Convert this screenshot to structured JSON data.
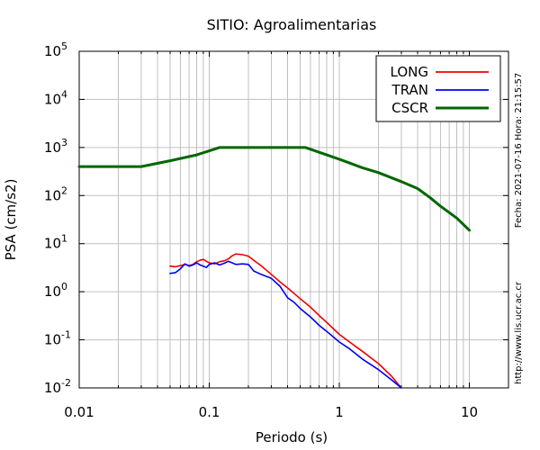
{
  "chart_data": {
    "type": "line",
    "title": "SITIO: Agroalimentarias",
    "xlabel": "Periodo (s)",
    "ylabel": "PSA (cm/s2)",
    "x_scale": "log",
    "y_scale": "log",
    "xlim": [
      0.01,
      20
    ],
    "ylim": [
      0.01,
      100000
    ],
    "grid": true,
    "legend_position": "top-right",
    "x_ticks": [
      {
        "value": 0.01,
        "label": "0.01"
      },
      {
        "value": 0.1,
        "label": "0.1"
      },
      {
        "value": 1,
        "label": "1"
      },
      {
        "value": 10,
        "label": "10"
      }
    ],
    "y_ticks": [
      {
        "value": 0.01,
        "base": "10",
        "exp": "-2"
      },
      {
        "value": 0.1,
        "base": "10",
        "exp": "-1"
      },
      {
        "value": 1,
        "base": "10",
        "exp": "0"
      },
      {
        "value": 10,
        "base": "10",
        "exp": "1"
      },
      {
        "value": 100,
        "base": "10",
        "exp": "2"
      },
      {
        "value": 1000,
        "base": "10",
        "exp": "3"
      },
      {
        "value": 10000,
        "base": "10",
        "exp": "4"
      },
      {
        "value": 100000,
        "base": "10",
        "exp": "5"
      }
    ],
    "series": [
      {
        "name": "LONG",
        "color": "#ee0000",
        "points": [
          [
            0.05,
            3.4
          ],
          [
            0.055,
            3.3
          ],
          [
            0.06,
            3.5
          ],
          [
            0.065,
            3.7
          ],
          [
            0.07,
            3.5
          ],
          [
            0.075,
            3.7
          ],
          [
            0.08,
            4.2
          ],
          [
            0.085,
            4.5
          ],
          [
            0.09,
            4.7
          ],
          [
            0.095,
            4.3
          ],
          [
            0.1,
            4.0
          ],
          [
            0.11,
            3.8
          ],
          [
            0.12,
            4.2
          ],
          [
            0.13,
            4.4
          ],
          [
            0.14,
            4.8
          ],
          [
            0.15,
            5.6
          ],
          [
            0.16,
            6.1
          ],
          [
            0.17,
            6.0
          ],
          [
            0.18,
            5.9
          ],
          [
            0.2,
            5.5
          ],
          [
            0.22,
            4.5
          ],
          [
            0.25,
            3.5
          ],
          [
            0.3,
            2.3
          ],
          [
            0.35,
            1.6
          ],
          [
            0.4,
            1.2
          ],
          [
            0.5,
            0.72
          ],
          [
            0.6,
            0.48
          ],
          [
            0.7,
            0.32
          ],
          [
            0.8,
            0.23
          ],
          [
            1.0,
            0.13
          ],
          [
            1.2,
            0.09
          ],
          [
            1.5,
            0.058
          ],
          [
            2.0,
            0.032
          ],
          [
            2.5,
            0.018
          ],
          [
            3.0,
            0.01
          ]
        ]
      },
      {
        "name": "TRAN",
        "color": "#0000ee",
        "points": [
          [
            0.05,
            2.4
          ],
          [
            0.055,
            2.5
          ],
          [
            0.06,
            3.0
          ],
          [
            0.065,
            3.8
          ],
          [
            0.07,
            3.4
          ],
          [
            0.075,
            3.6
          ],
          [
            0.08,
            4.0
          ],
          [
            0.085,
            3.6
          ],
          [
            0.09,
            3.4
          ],
          [
            0.095,
            3.2
          ],
          [
            0.1,
            3.7
          ],
          [
            0.11,
            4.0
          ],
          [
            0.12,
            3.6
          ],
          [
            0.13,
            3.9
          ],
          [
            0.14,
            4.3
          ],
          [
            0.15,
            4.0
          ],
          [
            0.16,
            3.7
          ],
          [
            0.18,
            3.8
          ],
          [
            0.2,
            3.7
          ],
          [
            0.22,
            2.7
          ],
          [
            0.25,
            2.3
          ],
          [
            0.3,
            1.9
          ],
          [
            0.35,
            1.3
          ],
          [
            0.4,
            0.75
          ],
          [
            0.45,
            0.6
          ],
          [
            0.5,
            0.45
          ],
          [
            0.6,
            0.3
          ],
          [
            0.7,
            0.2
          ],
          [
            0.8,
            0.15
          ],
          [
            1.0,
            0.09
          ],
          [
            1.2,
            0.065
          ],
          [
            1.5,
            0.04
          ],
          [
            2.0,
            0.024
          ],
          [
            2.5,
            0.015
          ],
          [
            3.0,
            0.01
          ]
        ]
      },
      {
        "name": "CSCR",
        "color": "#006600",
        "points": [
          [
            0.01,
            400
          ],
          [
            0.03,
            400
          ],
          [
            0.05,
            530
          ],
          [
            0.08,
            700
          ],
          [
            0.12,
            1000
          ],
          [
            0.55,
            1000
          ],
          [
            1.0,
            570
          ],
          [
            1.5,
            380
          ],
          [
            2.0,
            300
          ],
          [
            3.0,
            195
          ],
          [
            4.0,
            140
          ],
          [
            5.0,
            90
          ],
          [
            6.0,
            60
          ],
          [
            8.0,
            34
          ],
          [
            10.0,
            19
          ]
        ]
      }
    ]
  },
  "side_text_right": "Fecha: 2021-07-16  Hora: 21:15:57",
  "side_text_url": "http://www.lis.ucr.ac.cr"
}
